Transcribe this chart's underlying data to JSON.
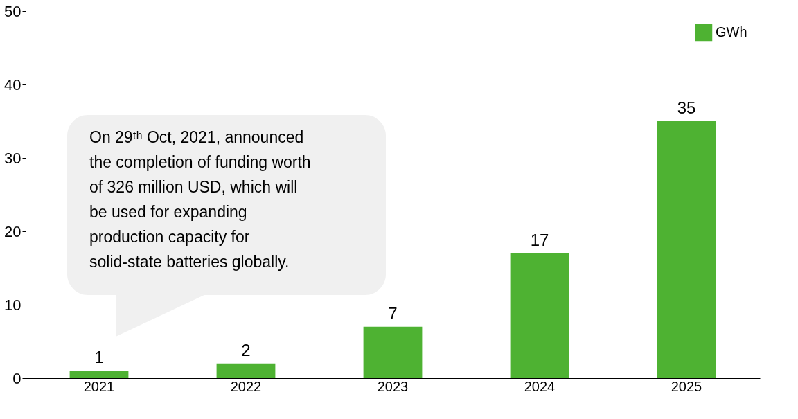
{
  "chart_data": {
    "type": "bar",
    "categories": [
      "2021",
      "2022",
      "2023",
      "2024",
      "2025"
    ],
    "series": [
      {
        "name": "GWh",
        "color": "#4eb232",
        "values": [
          1,
          2,
          7,
          17,
          35
        ]
      }
    ],
    "ylim": [
      0,
      50
    ],
    "yticks": [
      0,
      10,
      20,
      30,
      40,
      50
    ],
    "grid": false,
    "legend": "top right",
    "data_labels": true,
    "annotations": [
      "On 29ᵗʰ Oct, 2021, announced the completion of funding worth of 326 million USD, which will be used for expanding production capacity for solid-state batteries globally."
    ]
  }
}
